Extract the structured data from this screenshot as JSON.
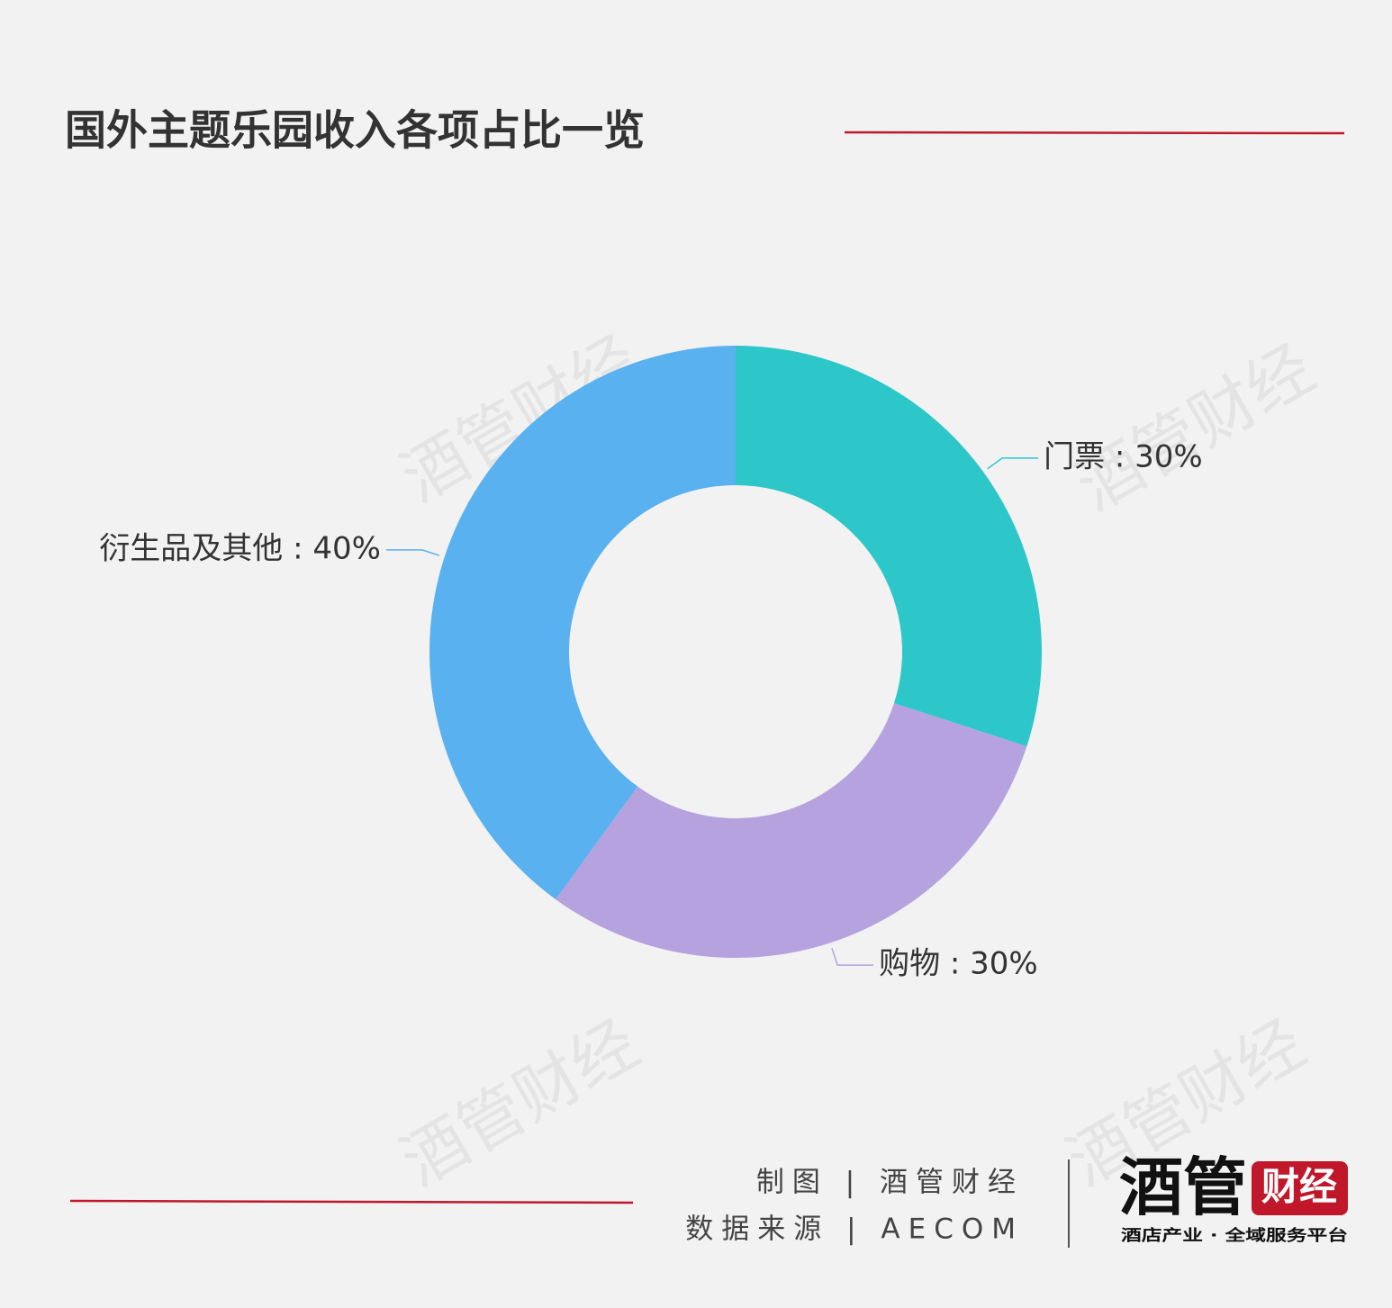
{
  "chart_data": {
    "type": "donut",
    "title": "国外主题乐园收入各项占比一览",
    "values": [
      30,
      30,
      40
    ],
    "value_labels": [
      "门票 : 30%",
      "购物 : 30%",
      "衍生品及其他 : 40%"
    ],
    "colors": [
      "#2ec7c9",
      "#b6a2de",
      "#5ab1ef"
    ]
  },
  "footer": {
    "credit": "制图 | 酒管财经",
    "source": "数据来源 | AECOM"
  },
  "watermark": "酒管财经",
  "logo": {
    "main": "酒管",
    "badge": "财经",
    "tagline": "酒店产业 · 全域服务平台"
  }
}
